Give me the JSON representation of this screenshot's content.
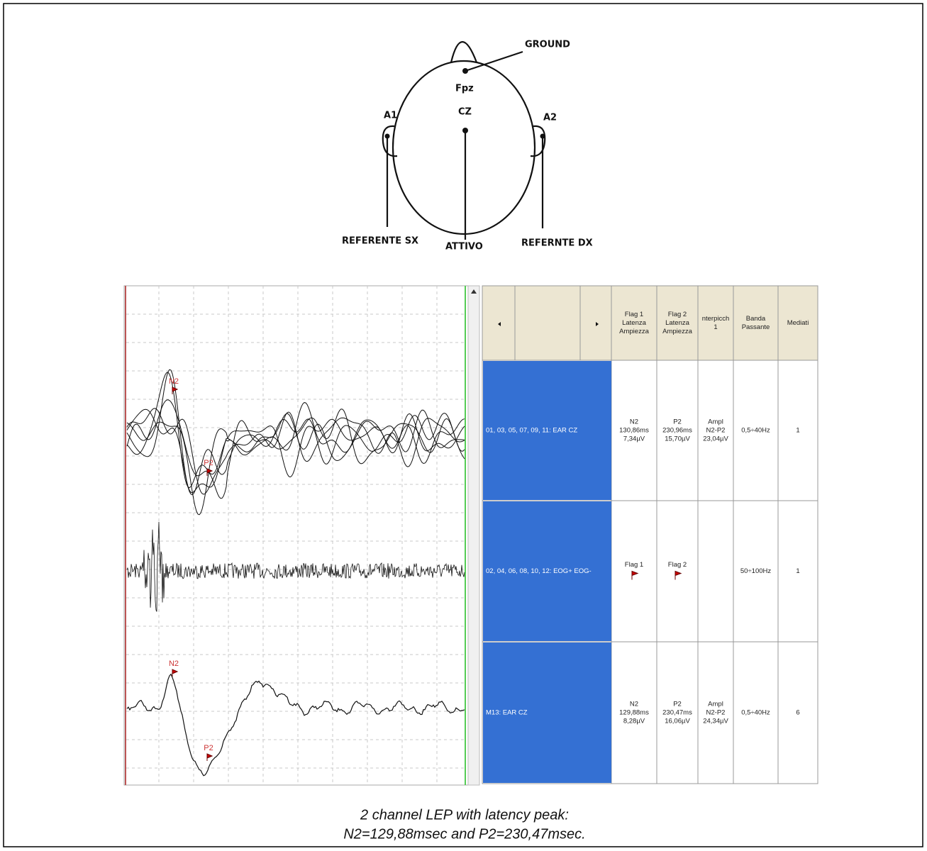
{
  "diagram": {
    "labels": {
      "ground": "GROUND",
      "fpz": "Fpz",
      "cz": "CZ",
      "a1": "A1",
      "a2": "A2",
      "ref_sx": "REFERENTE SX",
      "attivo": "ATTIVO",
      "ref_dx": "REFERNTE DX"
    }
  },
  "traces": [
    {
      "flags": [
        "N2",
        "P2"
      ]
    },
    {
      "flags": [
        "N2",
        "P2"
      ]
    }
  ],
  "table": {
    "headers": [
      [
        "Flag 1",
        "Latenza",
        "Ampiezza"
      ],
      [
        "Flag 2",
        "Latenza",
        "Ampiezza"
      ],
      [
        "nterpicch",
        "1"
      ],
      [
        "Banda",
        "Passante"
      ],
      [
        "Mediati"
      ]
    ],
    "rows": [
      {
        "label": "01, 03, 05, 07, 09, 11: EAR  CZ",
        "cells": [
          [
            "N2",
            "130,86ms",
            "7,34µV"
          ],
          [
            "P2",
            "230,96ms",
            "15,70µV"
          ],
          [
            "Ampl",
            "N2-P2",
            "23,04µV"
          ],
          [
            "0,5÷40Hz"
          ],
          [
            "1"
          ]
        ]
      },
      {
        "label": "02, 04, 06, 08, 10, 12: EOG+  EOG-",
        "cells": [
          [
            "Flag 1"
          ],
          [
            "Flag 2"
          ],
          [],
          [
            "50÷100Hz"
          ],
          [
            "1"
          ]
        ]
      },
      {
        "label": "M13: EAR  CZ",
        "cells": [
          [
            "N2",
            "129,88ms",
            "8,28µV"
          ],
          [
            "P2",
            "230,47ms",
            "16,06µV"
          ],
          [
            "Ampl",
            "N2-P2",
            "24,34µV"
          ],
          [
            "0,5÷40Hz"
          ],
          [
            "6"
          ]
        ]
      }
    ]
  },
  "caption": [
    "2 channel LEP with latency peak:",
    "N2=129,88msec and P2=230,47msec."
  ]
}
